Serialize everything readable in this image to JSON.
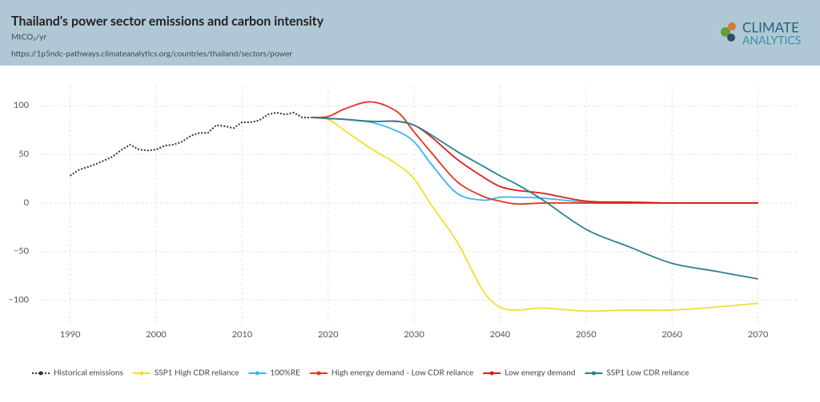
{
  "header": {
    "logo": [
      "CLIMATE",
      "ANALYTICS"
    ]
  },
  "chart_data": {
    "type": "line",
    "title": "Thailand's power sector emissions and carbon intensity",
    "subtitle": "MtCO₂/yr",
    "source": "https://1p5ndc-pathways.climateanalytics.org/countries/thailand/sectors/power",
    "xlim": [
      1986.5,
      2074.5
    ],
    "ylim": [
      -124,
      120
    ],
    "xticks": [
      1990,
      2000,
      2010,
      2020,
      2030,
      2040,
      2050,
      2060,
      2070
    ],
    "yticks": [
      {
        "value": -100,
        "label": "−100"
      },
      {
        "value": -50,
        "label": "−50"
      },
      0,
      50,
      100
    ],
    "grid": true,
    "legend": "bottom",
    "series": [
      {
        "name": "Historical emissions",
        "color": "#333333",
        "dashed": true,
        "x": [
          1990,
          1991,
          1992,
          1993,
          1994,
          1995,
          1996,
          1997,
          1998,
          1999,
          2000,
          2001,
          2002,
          2003,
          2004,
          2005,
          2006,
          2007,
          2008,
          2009,
          2010,
          2011,
          2012,
          2013,
          2014,
          2015,
          2016,
          2017,
          2018
        ],
        "values": [
          28,
          34,
          37,
          40,
          44,
          48,
          55,
          60,
          55,
          54,
          55,
          59,
          60,
          63,
          69,
          72,
          72,
          80,
          79,
          77,
          83,
          83,
          85,
          91,
          93,
          91,
          93,
          88,
          88
        ]
      },
      {
        "name": "SSP1 High CDR reliance",
        "color": "#f3de2c",
        "x": [
          2018,
          2020,
          2022,
          2025,
          2028,
          2030,
          2032,
          2035,
          2038,
          2040,
          2042,
          2045,
          2050,
          2055,
          2060,
          2065,
          2070
        ],
        "values": [
          88,
          86,
          74,
          56,
          40,
          25,
          -2,
          -40,
          -90,
          -107,
          -110,
          -108,
          -111,
          -110,
          -110,
          -107,
          -103
        ]
      },
      {
        "name": "100%RE",
        "color": "#3db4ef",
        "x": [
          2018,
          2020,
          2022,
          2025,
          2028,
          2030,
          2032,
          2035,
          2038,
          2040,
          2042,
          2045,
          2050,
          2055,
          2060,
          2065,
          2070
        ],
        "values": [
          88,
          87,
          86,
          83,
          74,
          63,
          40,
          10,
          3,
          6,
          6,
          5,
          1,
          0.5,
          0,
          0,
          0
        ]
      },
      {
        "name": "High energy demand - Low CDR reliance",
        "color": "#e8321e",
        "x": [
          2018,
          2020,
          2022,
          2025,
          2028,
          2030,
          2032,
          2035,
          2038,
          2040,
          2042,
          2045,
          2050,
          2055,
          2060,
          2065,
          2070
        ],
        "values": [
          88,
          89,
          97,
          104,
          94,
          73,
          52,
          22,
          7,
          2,
          -1,
          0,
          0,
          0,
          0,
          0,
          0
        ]
      },
      {
        "name": "Low energy demand",
        "color": "#dd1c1c",
        "x": [
          2018,
          2020,
          2022,
          2025,
          2028,
          2030,
          2032,
          2035,
          2038,
          2040,
          2042,
          2045,
          2050,
          2055,
          2060,
          2065,
          2070
        ],
        "values": [
          88,
          87,
          86,
          84,
          84,
          80,
          68,
          45,
          27,
          17,
          13,
          10,
          2,
          1,
          0,
          0,
          0
        ]
      },
      {
        "name": "SSP1 Low CDR reliance",
        "color": "#2e7f8f",
        "x": [
          2018,
          2020,
          2022,
          2025,
          2028,
          2030,
          2032,
          2035,
          2038,
          2040,
          2042,
          2045,
          2050,
          2055,
          2060,
          2065,
          2070
        ],
        "values": [
          88,
          87,
          86,
          84,
          84,
          80,
          70,
          53,
          38,
          28,
          19,
          3,
          -27,
          -45,
          -62,
          -70,
          -78
        ]
      }
    ]
  }
}
